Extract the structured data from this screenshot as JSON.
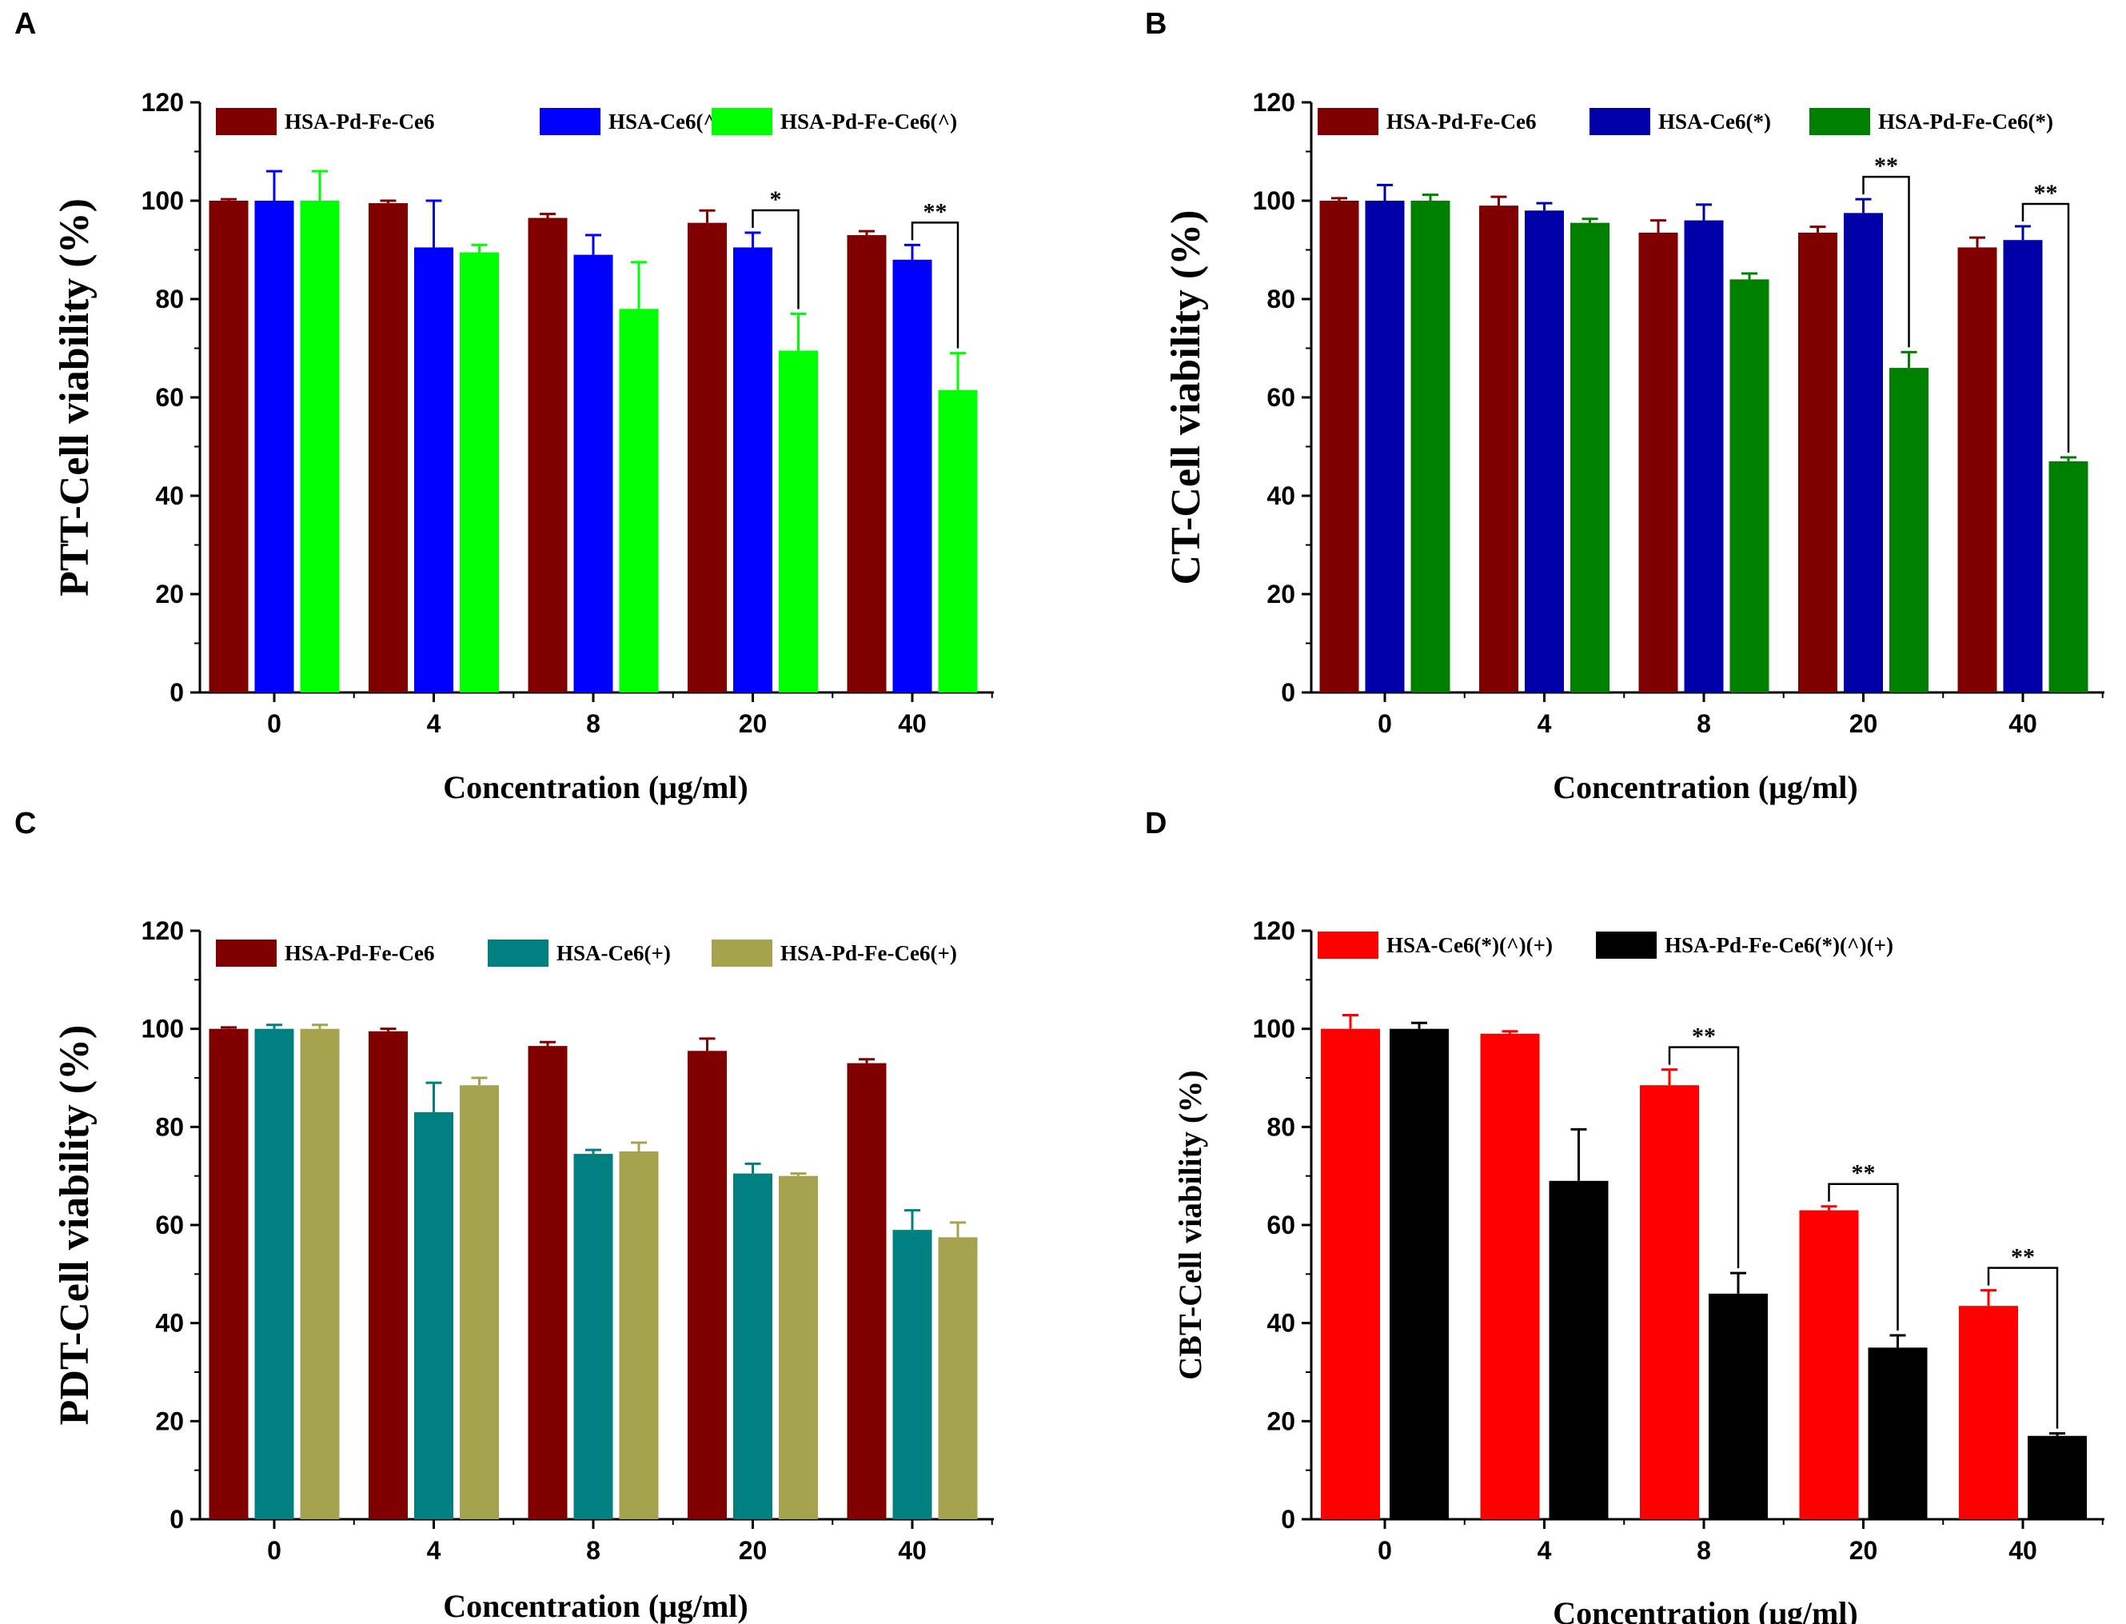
{
  "figure": {
    "panels": [
      {
        "label": "A",
        "chart_data": {
          "type": "bar",
          "title": "",
          "xlabel": "Concentration (μg/ml)",
          "ylabel": "PTT-Cell viability (%)",
          "ylim": [
            0,
            120
          ],
          "yticks": [
            0,
            20,
            40,
            60,
            80,
            100,
            120
          ],
          "categories": [
            "0",
            "4",
            "8",
            "20",
            "40"
          ],
          "legend_position": "top",
          "series": [
            {
              "name": "HSA-Pd-Fe-Ce6",
              "color": "#800000",
              "values": [
                100,
                99.5,
                96.5,
                95.5,
                93
              ],
              "errors": [
                0.3,
                0.5,
                0.8,
                2.5,
                0.8
              ]
            },
            {
              "name": "HSA-Ce6(^)",
              "color": "#0000FF",
              "values": [
                100,
                90.5,
                89,
                90.5,
                88
              ],
              "errors": [
                6,
                9.5,
                4,
                3,
                3
              ]
            },
            {
              "name": "HSA-Pd-Fe-Ce6(^)",
              "color": "#00FF00",
              "values": [
                100,
                89.5,
                78,
                69.5,
                61.5
              ],
              "errors": [
                6,
                1.5,
                9.5,
                7.5,
                7.5
              ]
            }
          ],
          "significance": [
            {
              "category": "20",
              "from_series": 1,
              "to_series": 2,
              "label": "*"
            },
            {
              "category": "40",
              "from_series": 1,
              "to_series": 2,
              "label": "**"
            }
          ]
        }
      },
      {
        "label": "B",
        "chart_data": {
          "type": "bar",
          "title": "",
          "xlabel": "Concentration (μg/ml)",
          "ylabel": "CT-Cell viability (%)",
          "ylim": [
            0,
            120
          ],
          "yticks": [
            0,
            20,
            40,
            60,
            80,
            100,
            120
          ],
          "categories": [
            "0",
            "4",
            "8",
            "20",
            "40"
          ],
          "legend_position": "top",
          "series": [
            {
              "name": "HSA-Pd-Fe-Ce6",
              "color": "#800000",
              "values": [
                100,
                99,
                93.5,
                93.5,
                90.5
              ],
              "errors": [
                0.5,
                1.8,
                2.5,
                1.2,
                2
              ]
            },
            {
              "name": "HSA-Ce6(*)",
              "color": "#0000A8",
              "values": [
                100,
                98,
                96,
                97.5,
                92
              ],
              "errors": [
                3.2,
                1.5,
                3.2,
                2.8,
                2.8
              ]
            },
            {
              "name": "HSA-Pd-Fe-Ce6(*)",
              "color": "#008000",
              "values": [
                100,
                95.5,
                84,
                66,
                47
              ],
              "errors": [
                1.2,
                0.8,
                1.2,
                3.2,
                0.8
              ]
            }
          ],
          "significance": [
            {
              "category": "20",
              "from_series": 1,
              "to_series": 2,
              "label": "**"
            },
            {
              "category": "40",
              "from_series": 1,
              "to_series": 2,
              "label": "**"
            }
          ]
        }
      },
      {
        "label": "C",
        "chart_data": {
          "type": "bar",
          "title": "",
          "xlabel": "Concentration (μg/ml)",
          "ylabel": "PDT-Cell viability (%)",
          "ylim": [
            0,
            120
          ],
          "yticks": [
            0,
            20,
            40,
            60,
            80,
            100,
            120
          ],
          "categories": [
            "0",
            "4",
            "8",
            "20",
            "40"
          ],
          "legend_position": "top",
          "series": [
            {
              "name": "HSA-Pd-Fe-Ce6",
              "color": "#800000",
              "values": [
                100,
                99.5,
                96.5,
                95.5,
                93
              ],
              "errors": [
                0.3,
                0.5,
                0.8,
                2.5,
                0.8
              ]
            },
            {
              "name": "HSA-Ce6(+)",
              "color": "#008080",
              "values": [
                100,
                83,
                74.5,
                70.5,
                59
              ],
              "errors": [
                0.8,
                6,
                0.8,
                2,
                4
              ]
            },
            {
              "name": "HSA-Pd-Fe-Ce6(+)",
              "color": "#A6A34F",
              "values": [
                100,
                88.5,
                75,
                70,
                57.5
              ],
              "errors": [
                0.8,
                1.5,
                1.8,
                0.5,
                3
              ]
            }
          ],
          "significance": []
        }
      },
      {
        "label": "D",
        "chart_data": {
          "type": "bar",
          "title": "",
          "xlabel": "Concentration (μg/ml)",
          "ylabel": "CBT-Cell viability (%)",
          "ylim": [
            0,
            120
          ],
          "yticks": [
            0,
            20,
            40,
            60,
            80,
            100,
            120
          ],
          "categories": [
            "0",
            "4",
            "8",
            "20",
            "40"
          ],
          "legend_position": "top",
          "series": [
            {
              "name": "HSA-Ce6(*)(^)(+)",
              "color": "#FF0000",
              "values": [
                100,
                99,
                88.5,
                63,
                43.5
              ],
              "errors": [
                2.8,
                0.5,
                3.2,
                0.8,
                3.2
              ]
            },
            {
              "name": "HSA-Pd-Fe-Ce6(*)(^)(+)",
              "color": "#000000",
              "values": [
                100,
                69,
                46,
                35,
                17
              ],
              "errors": [
                1.2,
                10.5,
                4.2,
                2.5,
                0.5
              ]
            }
          ],
          "significance": [
            {
              "category": "8",
              "from_series": 0,
              "to_series": 1,
              "label": "**"
            },
            {
              "category": "20",
              "from_series": 0,
              "to_series": 1,
              "label": "**"
            },
            {
              "category": "40",
              "from_series": 0,
              "to_series": 1,
              "label": "**"
            }
          ]
        }
      }
    ]
  }
}
